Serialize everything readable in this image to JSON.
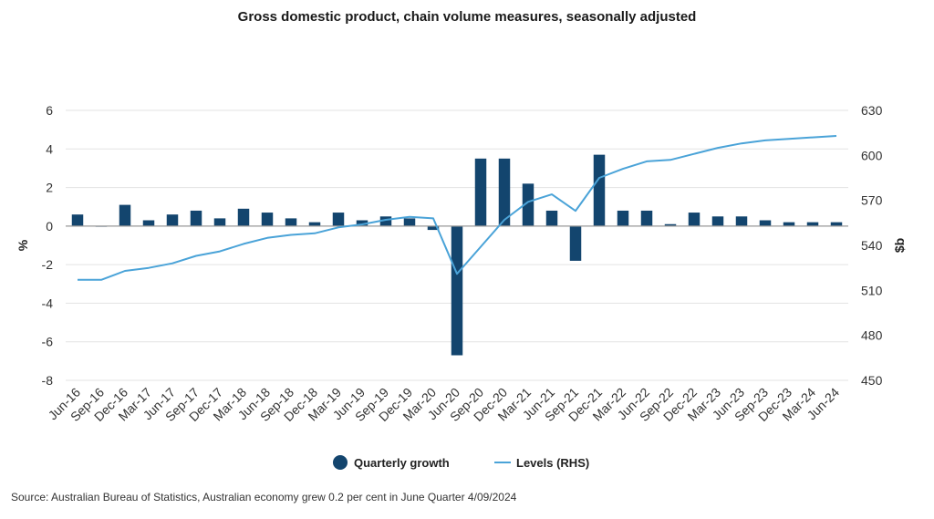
{
  "title": "Gross domestic product, chain volume measures, seasonally adjusted",
  "source": "Source: Australian Bureau of Statistics, Australian economy grew 0.2 per cent in June Quarter 4/09/2024",
  "colors": {
    "bar": "#13456e",
    "line": "#4aa3d8",
    "grid": "#e3e3e3",
    "axis": "#555555"
  },
  "chart_data": {
    "type": "bar",
    "categories": [
      "Jun-16",
      "Sep-16",
      "Dec-16",
      "Mar-17",
      "Jun-17",
      "Sep-17",
      "Dec-17",
      "Mar-18",
      "Jun-18",
      "Sep-18",
      "Dec-18",
      "Mar-19",
      "Jun-19",
      "Sep-19",
      "Dec-19",
      "Mar-20",
      "Jun-20",
      "Sep-20",
      "Dec-20",
      "Mar-21",
      "Jun-21",
      "Sep-21",
      "Dec-21",
      "Mar-22",
      "Jun-22",
      "Sep-22",
      "Dec-22",
      "Mar-23",
      "Jun-23",
      "Sep-23",
      "Dec-23",
      "Mar-24",
      "Jun-24"
    ],
    "series": [
      {
        "name": "Quarterly growth",
        "type": "bar",
        "axis": "left",
        "values": [
          0.6,
          0.0,
          1.1,
          0.3,
          0.6,
          0.8,
          0.4,
          0.9,
          0.7,
          0.4,
          0.2,
          0.7,
          0.3,
          0.5,
          0.4,
          -0.2,
          -6.7,
          3.5,
          3.5,
          2.2,
          0.8,
          -1.8,
          3.7,
          0.8,
          0.8,
          0.1,
          0.7,
          0.5,
          0.5,
          0.3,
          0.2,
          0.2,
          0.2
        ]
      },
      {
        "name": "Levels (RHS)",
        "type": "line",
        "axis": "right",
        "values": [
          517,
          517,
          523,
          525,
          528,
          533,
          536,
          541,
          545,
          547,
          548,
          552,
          554,
          557,
          559,
          558,
          521,
          539,
          557,
          569,
          574,
          563,
          585,
          591,
          596,
          597,
          601,
          605,
          608,
          610,
          611,
          612,
          613
        ]
      }
    ],
    "y_left": {
      "label": "%",
      "ylim": [
        -8,
        6
      ],
      "ticks": [
        6,
        4,
        2,
        0,
        -2,
        -4,
        -6,
        -8
      ]
    },
    "y_right": {
      "label": "$b",
      "ylim": [
        450,
        630
      ],
      "ticks": [
        630,
        600,
        570,
        540,
        510,
        480,
        450
      ]
    },
    "grid": true,
    "legend_position": "bottom"
  }
}
